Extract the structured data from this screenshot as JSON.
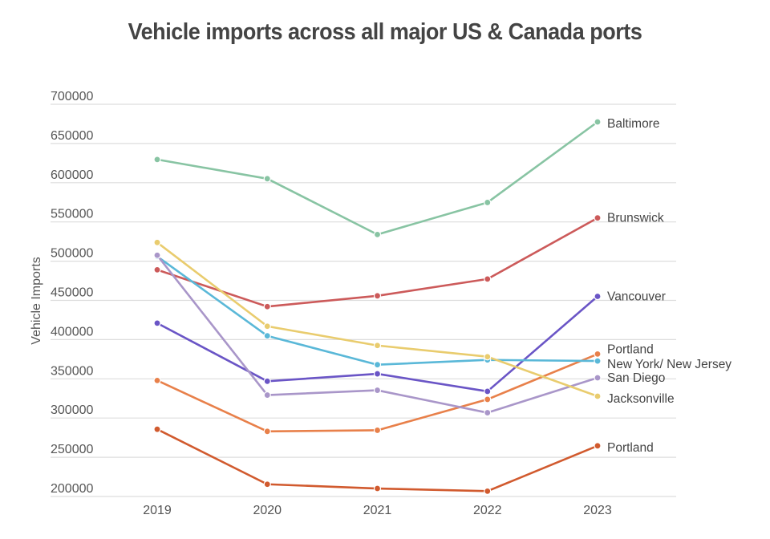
{
  "chart_data": {
    "type": "line",
    "title": "Vehicle imports across all major US & Canada ports",
    "xlabel": "",
    "ylabel": "Vehicle Imports",
    "x": [
      "2019",
      "2020",
      "2021",
      "2022",
      "2023"
    ],
    "ylim": [
      200000,
      700000
    ],
    "yticks": [
      "200000",
      "250000",
      "300000",
      "350000",
      "400000",
      "450000",
      "500000",
      "550000",
      "600000",
      "650000",
      "700000"
    ],
    "grid": true,
    "legend": "end-of-line labels (right)",
    "series": [
      {
        "name": "Baltimore",
        "color": "#88c4a3",
        "values": [
          629600,
          605100,
          534000,
          574800,
          677500
        ]
      },
      {
        "name": "Brunswick",
        "color": "#cc5a5a",
        "values": [
          489000,
          442100,
          455800,
          477200,
          555100
        ]
      },
      {
        "name": "Vancouver",
        "color": "#6a55c6",
        "values": [
          421000,
          346900,
          356400,
          334000,
          455100
        ]
      },
      {
        "name": "Portland",
        "color": "#e8804a",
        "values": [
          347900,
          283000,
          284400,
          323800,
          381600
        ]
      },
      {
        "name": "New York/ New Jersey",
        "color": "#5ab8d8",
        "values": [
          506000,
          404800,
          368000,
          374100,
          372700
        ]
      },
      {
        "name": "San Diego",
        "color": "#a996c9",
        "values": [
          507500,
          329300,
          335400,
          306800,
          351300
        ]
      },
      {
        "name": "Jacksonville",
        "color": "#e9cc6e",
        "values": [
          523800,
          417000,
          392500,
          378200,
          327800
        ]
      },
      {
        "name": "Portland",
        "color": "#d15a2e",
        "values": [
          285700,
          215600,
          210200,
          206800,
          264600
        ]
      }
    ]
  }
}
